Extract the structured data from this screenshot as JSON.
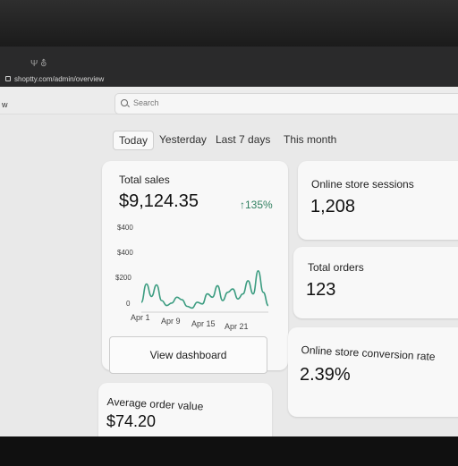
{
  "browser": {
    "url": "shoptty.com/admin/overview",
    "tab_icons": "Ψ  ⛢"
  },
  "sidebar": {
    "partial_label": "w"
  },
  "search": {
    "placeholder": "Search"
  },
  "date_tabs": [
    {
      "label": "Today",
      "active": true
    },
    {
      "label": "Yesterday",
      "active": false
    },
    {
      "label": "Last 7 days",
      "active": false
    },
    {
      "label": "This month",
      "active": false
    }
  ],
  "total_sales": {
    "label": "Total sales",
    "value": "$9,124.35",
    "change": "135%",
    "button": "View dashboard"
  },
  "chart_data": {
    "type": "line",
    "y_tick_labels": [
      "$400",
      "$400",
      "$200",
      "0"
    ],
    "x_tick_labels": [
      "Apr 1",
      "Apr 9",
      "Apr 15",
      "Apr 21"
    ],
    "series": [
      {
        "values": [
          60,
          170,
          95,
          165,
          70,
          40,
          55,
          90,
          75,
          35,
          25,
          60,
          50,
          110,
          90,
          160,
          70,
          120,
          140,
          80,
          110,
          190,
          110,
          250,
          120,
          40
        ]
      }
    ],
    "ylim": [
      0,
      400
    ],
    "line_color": "#3b9c80"
  },
  "sessions": {
    "label": "Online store sessions",
    "value": "1,208"
  },
  "orders": {
    "label": "Total orders",
    "value": "123"
  },
  "conversion": {
    "label": "Online store conversion rate",
    "value": "2.39%"
  },
  "aov": {
    "label": "Average order value",
    "value": "$74.20"
  },
  "colors": {
    "accent_green": "#2f7f5f",
    "page_bg": "#e9e9e9",
    "card_bg": "#f8f8f8"
  }
}
